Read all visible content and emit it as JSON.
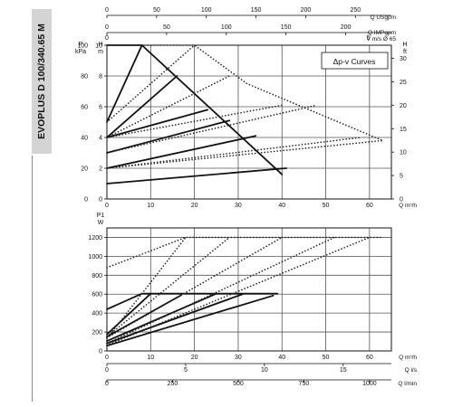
{
  "sidebar_label": "EVOPLUS D 100/340.65 M",
  "colors": {
    "curve": "#111111",
    "dotted": "#222222",
    "grid": "#555555",
    "tab": "#d4d4d4"
  },
  "chart_data": [
    {
      "type": "line",
      "title": "",
      "legend_box": "Δp-v Curves",
      "x": {
        "label": "Q m³/h",
        "range": [
          0,
          65
        ],
        "ticks": [
          0,
          10,
          20,
          30,
          40,
          50,
          60
        ]
      },
      "y_left": [
        {
          "unit": "P",
          "unit2": "kPa",
          "range": [
            0,
            100
          ],
          "ticks": [
            0,
            20,
            40,
            60,
            80,
            100
          ]
        },
        {
          "unit": "H",
          "unit2": "m",
          "range": [
            0,
            10
          ],
          "ticks": [
            0,
            2,
            4,
            6,
            8,
            10
          ]
        }
      ],
      "y_right": {
        "unit": "H",
        "unit2": "ft",
        "range": [
          0,
          32.8
        ],
        "ticks": [
          0,
          5,
          10,
          15,
          20,
          25,
          30
        ]
      },
      "top_axes": [
        {
          "label": "Q USgpm",
          "range": [
            0,
            286.2
          ],
          "ticks": [
            0,
            50,
            100,
            150,
            200,
            250
          ]
        },
        {
          "label": "Q IMPgpm",
          "range": [
            0,
            238.3
          ],
          "ticks": [
            0,
            50,
            100,
            150,
            200
          ]
        },
        {
          "label": "V m/s Ø 65",
          "range": [
            0,
            5.44
          ],
          "ticks": [
            0,
            5
          ]
        }
      ],
      "series": [
        {
          "style": "solid",
          "x": [
            0,
            8,
            40
          ],
          "y": [
            10,
            10,
            1.6
          ]
        },
        {
          "style": "solid",
          "x": [
            0,
            8
          ],
          "y": [
            5,
            10
          ]
        },
        {
          "style": "solid",
          "x": [
            0,
            16
          ],
          "y": [
            4,
            8
          ]
        },
        {
          "style": "solid",
          "x": [
            0,
            23
          ],
          "y": [
            4,
            5.8
          ]
        },
        {
          "style": "solid",
          "x": [
            0,
            28
          ],
          "y": [
            3,
            5.1
          ]
        },
        {
          "style": "solid",
          "x": [
            0,
            34
          ],
          "y": [
            2,
            4.1
          ]
        },
        {
          "style": "solid",
          "x": [
            0,
            41
          ],
          "y": [
            1,
            2
          ]
        },
        {
          "style": "dotted",
          "x": [
            0,
            20,
            32,
            63
          ],
          "y": [
            10,
            10,
            7.5,
            3.8
          ]
        },
        {
          "style": "dotted",
          "x": [
            0,
            20
          ],
          "y": [
            5,
            10
          ]
        },
        {
          "style": "dotted",
          "x": [
            0,
            28
          ],
          "y": [
            4,
            8
          ]
        },
        {
          "style": "dotted",
          "x": [
            0,
            40
          ],
          "y": [
            4,
            6.1
          ]
        },
        {
          "style": "dotted",
          "x": [
            0,
            48
          ],
          "y": [
            3,
            6.1
          ]
        },
        {
          "style": "dotted",
          "x": [
            0,
            58
          ],
          "y": [
            2,
            4
          ]
        },
        {
          "style": "dotted",
          "x": [
            0,
            63
          ],
          "y": [
            2,
            3.8
          ]
        }
      ]
    },
    {
      "type": "line",
      "title": "",
      "x": {
        "label": "Q m³/h",
        "range": [
          0,
          65
        ],
        "ticks": [
          0,
          10,
          20,
          30,
          40,
          50,
          60
        ]
      },
      "y_left": {
        "unit": "P1",
        "unit2": "W",
        "range": [
          0,
          1300
        ],
        "ticks": [
          0,
          200,
          400,
          600,
          800,
          1000,
          1200
        ]
      },
      "bottom_axes": [
        {
          "label": "Q l/s",
          "range": [
            0,
            18.06
          ],
          "ticks": [
            0,
            5,
            10,
            15
          ]
        },
        {
          "label": "Q l/min",
          "range": [
            0,
            1083.3
          ],
          "ticks": [
            0,
            250,
            500,
            750,
            1000
          ]
        }
      ],
      "series": [
        {
          "style": "solid",
          "x": [
            0,
            8,
            39
          ],
          "y": [
            440,
            605,
            605
          ]
        },
        {
          "style": "solid",
          "x": [
            0,
            10
          ],
          "y": [
            175,
            605
          ]
        },
        {
          "style": "solid",
          "x": [
            0,
            17
          ],
          "y": [
            150,
            590
          ]
        },
        {
          "style": "solid",
          "x": [
            0,
            25
          ],
          "y": [
            105,
            605
          ]
        },
        {
          "style": "solid",
          "x": [
            0,
            31
          ],
          "y": [
            80,
            600
          ]
        },
        {
          "style": "solid",
          "x": [
            0,
            38
          ],
          "y": [
            55,
            585
          ]
        },
        {
          "style": "dotted",
          "x": [
            0,
            18,
            63
          ],
          "y": [
            880,
            1200,
            1200
          ]
        },
        {
          "style": "dotted",
          "x": [
            0,
            18
          ],
          "y": [
            130,
            1200
          ]
        },
        {
          "style": "dotted",
          "x": [
            0,
            28
          ],
          "y": [
            150,
            1200
          ]
        },
        {
          "style": "dotted",
          "x": [
            0,
            40
          ],
          "y": [
            140,
            1200
          ]
        },
        {
          "style": "dotted",
          "x": [
            0,
            52
          ],
          "y": [
            80,
            1200
          ]
        },
        {
          "style": "dotted",
          "x": [
            0,
            60
          ],
          "y": [
            60,
            1200
          ]
        }
      ]
    }
  ]
}
